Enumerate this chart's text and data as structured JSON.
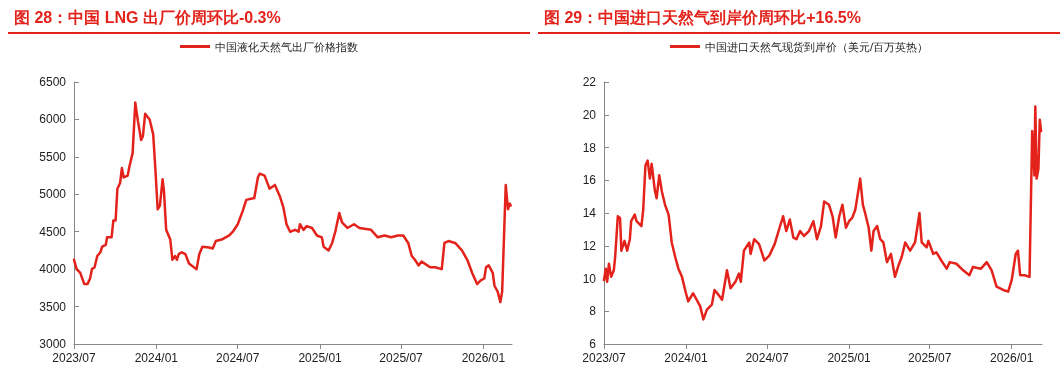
{
  "chart_data": [
    {
      "type": "line",
      "title": "图 28：中国 LNG 出厂价周环比-0.3%",
      "legend": "top",
      "grid": false,
      "marker": "none",
      "line_style": "solid",
      "xlim": [
        "2023-07-01",
        "2026-03-06"
      ],
      "xticks": [
        {
          "value": "2023-07-01",
          "label": "2023/07"
        },
        {
          "value": "2024-01-01",
          "label": "2024/01"
        },
        {
          "value": "2024-07-01",
          "label": "2024/07"
        },
        {
          "value": "2025-01-01",
          "label": "2025/01"
        },
        {
          "value": "2025-07-01",
          "label": "2025/07"
        },
        {
          "value": "2026-01-01",
          "label": "2026/01"
        }
      ],
      "ylim": [
        3000,
        6500
      ],
      "yticks": [
        3000,
        3500,
        4000,
        4500,
        5000,
        5500,
        6000,
        6500
      ],
      "series": [
        {
          "name": "中国液化天然气出厂价格指数",
          "color": "#e3231b",
          "x": [
            "2023-07-01",
            "2023-07-07",
            "2023-07-15",
            "2023-07-24",
            "2023-07-31",
            "2023-08-06",
            "2023-08-10",
            "2023-08-16",
            "2023-08-22",
            "2023-08-29",
            "2023-09-02",
            "2023-09-10",
            "2023-09-13",
            "2023-09-23",
            "2023-09-27",
            "2023-10-02",
            "2023-10-06",
            "2023-10-12",
            "2023-10-16",
            "2023-10-20",
            "2023-10-29",
            "2023-11-02",
            "2023-11-09",
            "2023-11-15",
            "2023-11-21",
            "2023-11-28",
            "2023-12-02",
            "2023-12-07",
            "2023-12-17",
            "2023-12-25",
            "2023-12-30",
            "2024-01-04",
            "2024-01-09",
            "2024-01-15",
            "2024-01-18",
            "2024-01-23",
            "2024-02-01",
            "2024-02-06",
            "2024-02-12",
            "2024-02-16",
            "2024-02-20",
            "2024-02-27",
            "2024-03-06",
            "2024-03-14",
            "2024-03-25",
            "2024-03-31",
            "2024-04-06",
            "2024-04-13",
            "2024-04-28",
            "2024-05-06",
            "2024-05-13",
            "2024-05-28",
            "2024-06-12",
            "2024-06-20",
            "2024-07-01",
            "2024-07-12",
            "2024-07-20",
            "2024-08-07",
            "2024-08-15",
            "2024-08-19",
            "2024-08-30",
            "2024-09-10",
            "2024-09-22",
            "2024-10-03",
            "2024-10-11",
            "2024-10-18",
            "2024-10-26",
            "2024-11-06",
            "2024-11-14",
            "2024-11-17",
            "2024-11-25",
            "2024-12-02",
            "2024-12-14",
            "2024-12-25",
            "2025-01-05",
            "2025-01-09",
            "2025-01-20",
            "2025-01-28",
            "2025-02-04",
            "2025-02-13",
            "2025-02-19",
            "2025-03-03",
            "2025-03-18",
            "2025-03-30",
            "2025-04-25",
            "2025-05-10",
            "2025-05-25",
            "2025-06-09",
            "2025-06-24",
            "2025-07-06",
            "2025-07-17",
            "2025-07-25",
            "2025-08-01",
            "2025-08-09",
            "2025-08-16",
            "2025-09-04",
            "2025-09-15",
            "2025-09-30",
            "2025-10-06",
            "2025-10-15",
            "2025-10-30",
            "2025-11-14",
            "2025-11-26",
            "2025-12-07",
            "2025-12-18",
            "2025-12-26",
            "2026-01-03",
            "2026-01-07",
            "2026-01-13",
            "2026-01-22",
            "2026-01-26",
            "2026-02-02",
            "2026-02-08",
            "2026-02-12",
            "2026-02-20",
            "2026-02-25",
            "2026-03-01",
            "2026-03-03"
          ],
          "values": [
            4125,
            4000,
            3950,
            3800,
            3800,
            3875,
            4000,
            4025,
            4175,
            4225,
            4300,
            4325,
            4425,
            4425,
            4650,
            4650,
            5075,
            5150,
            5350,
            5225,
            5250,
            5375,
            5550,
            6225,
            5975,
            5725,
            5775,
            6075,
            6000,
            5800,
            5325,
            4800,
            4850,
            5200,
            5050,
            4525,
            4400,
            4125,
            4175,
            4125,
            4200,
            4225,
            4200,
            4075,
            4025,
            4000,
            4200,
            4300,
            4290,
            4275,
            4375,
            4400,
            4450,
            4500,
            4600,
            4775,
            4925,
            4950,
            5225,
            5275,
            5250,
            5075,
            5125,
            4975,
            4825,
            4600,
            4500,
            4525,
            4500,
            4600,
            4525,
            4575,
            4550,
            4450,
            4425,
            4300,
            4250,
            4350,
            4500,
            4750,
            4625,
            4550,
            4600,
            4550,
            4525,
            4425,
            4450,
            4425,
            4450,
            4450,
            4350,
            4175,
            4125,
            4050,
            4100,
            4025,
            4025,
            4000,
            4350,
            4375,
            4350,
            4250,
            4125,
            3950,
            3800,
            3850,
            3875,
            4025,
            4050,
            3950,
            3775,
            3700,
            3560,
            3700,
            5125,
            4800,
            4875,
            4850
          ]
        }
      ]
    },
    {
      "type": "line",
      "title": "图 29：中国进口天然气到岸价周环比+16.5%",
      "legend": "top",
      "grid": false,
      "marker": "none",
      "line_style": "solid",
      "xlim": [
        "2023-07-01",
        "2026-03-10"
      ],
      "xticks": [
        {
          "value": "2023-07-01",
          "label": "2023/07"
        },
        {
          "value": "2024-01-01",
          "label": "2024/01"
        },
        {
          "value": "2024-07-01",
          "label": "2024/07"
        },
        {
          "value": "2025-01-01",
          "label": "2025/01"
        },
        {
          "value": "2025-07-01",
          "label": "2025/07"
        },
        {
          "value": "2026-01-01",
          "label": "2026/01"
        }
      ],
      "ylim": [
        6,
        22
      ],
      "yticks": [
        6,
        8,
        10,
        12,
        14,
        16,
        18,
        20,
        22
      ],
      "series": [
        {
          "name": "中国进口天然气现货到岸价（美元/百万英热）",
          "color": "#e3231b",
          "x": [
            "2023-07-01",
            "2023-07-05",
            "2023-07-08",
            "2023-07-12",
            "2023-07-17",
            "2023-07-23",
            "2023-07-26",
            "2023-08-01",
            "2023-08-06",
            "2023-08-09",
            "2023-08-16",
            "2023-08-22",
            "2023-08-28",
            "2023-08-31",
            "2023-09-08",
            "2023-09-12",
            "2023-09-23",
            "2023-09-27",
            "2023-10-02",
            "2023-10-07",
            "2023-10-12",
            "2023-10-16",
            "2023-10-23",
            "2023-10-27",
            "2023-11-02",
            "2023-11-08",
            "2023-11-15",
            "2023-11-23",
            "2023-11-30",
            "2023-12-08",
            "2023-12-15",
            "2023-12-23",
            "2024-01-01",
            "2024-01-06",
            "2024-01-17",
            "2024-02-02",
            "2024-02-09",
            "2024-02-17",
            "2024-02-28",
            "2024-03-05",
            "2024-03-14",
            "2024-03-22",
            "2024-04-02",
            "2024-04-10",
            "2024-04-21",
            "2024-04-29",
            "2024-05-03",
            "2024-05-10",
            "2024-05-22",
            "2024-05-25",
            "2024-06-02",
            "2024-06-13",
            "2024-06-25",
            "2024-07-06",
            "2024-07-18",
            "2024-07-29",
            "2024-08-06",
            "2024-08-13",
            "2024-08-21",
            "2024-08-29",
            "2024-09-05",
            "2024-09-13",
            "2024-09-22",
            "2024-10-03",
            "2024-10-13",
            "2024-10-21",
            "2024-10-30",
            "2024-11-06",
            "2024-11-17",
            "2024-11-25",
            "2024-12-02",
            "2024-12-10",
            "2024-12-17",
            "2024-12-25",
            "2025-01-01",
            "2025-01-08",
            "2025-01-15",
            "2025-01-26",
            "2025-02-01",
            "2025-02-06",
            "2025-02-14",
            "2025-02-20",
            "2025-02-25",
            "2025-03-05",
            "2025-03-12",
            "2025-03-19",
            "2025-03-27",
            "2025-04-05",
            "2025-04-14",
            "2025-04-22",
            "2025-04-29",
            "2025-05-07",
            "2025-05-18",
            "2025-05-29",
            "2025-06-08",
            "2025-06-13",
            "2025-06-24",
            "2025-06-28",
            "2025-07-09",
            "2025-07-16",
            "2025-07-27",
            "2025-08-08",
            "2025-08-15",
            "2025-08-30",
            "2025-09-14",
            "2025-09-28",
            "2025-10-06",
            "2025-10-24",
            "2025-11-06",
            "2025-11-17",
            "2025-11-28",
            "2025-12-13",
            "2025-12-24",
            "2026-01-01",
            "2026-01-10",
            "2026-01-15",
            "2026-01-20",
            "2026-01-30",
            "2026-02-10",
            "2026-02-16",
            "2026-02-21",
            "2026-02-23",
            "2026-02-26",
            "2026-03-02",
            "2026-03-05",
            "2026-03-08"
          ],
          "values": [
            9.9,
            10.6,
            9.8,
            10.9,
            10.1,
            10.5,
            11.3,
            13.8,
            13.7,
            11.7,
            12.3,
            11.7,
            12.4,
            13.5,
            13.9,
            13.5,
            13.2,
            14.2,
            16.9,
            17.2,
            16.1,
            17.0,
            15.4,
            14.9,
            16.3,
            15.3,
            14.5,
            13.9,
            12.2,
            11.3,
            10.6,
            10.1,
            9.1,
            8.6,
            9.1,
            8.3,
            7.5,
            8.1,
            8.4,
            9.3,
            9.0,
            8.7,
            10.5,
            9.4,
            9.8,
            10.3,
            9.8,
            11.7,
            12.2,
            11.5,
            12.4,
            12.1,
            11.1,
            11.4,
            12.1,
            13.1,
            13.8,
            12.9,
            13.6,
            12.5,
            12.4,
            12.9,
            12.6,
            12.9,
            13.5,
            12.4,
            13.2,
            14.7,
            14.5,
            13.8,
            12.5,
            13.8,
            14.5,
            13.1,
            13.5,
            13.7,
            14.2,
            16.1,
            14.5,
            14.0,
            13.1,
            11.7,
            12.9,
            13.2,
            12.4,
            12.2,
            11.0,
            11.5,
            10.1,
            10.8,
            11.3,
            12.2,
            11.7,
            12.2,
            14.0,
            12.2,
            11.9,
            12.3,
            11.5,
            11.6,
            11.1,
            10.6,
            11.0,
            10.9,
            10.5,
            10.2,
            10.7,
            10.6,
            11.0,
            10.5,
            9.5,
            9.3,
            9.2,
            9.9,
            11.5,
            11.7,
            10.2,
            10.2,
            10.1,
            19.0,
            16.3,
            20.5,
            16.1,
            16.7,
            19.7,
            19.0
          ]
        }
      ]
    }
  ]
}
